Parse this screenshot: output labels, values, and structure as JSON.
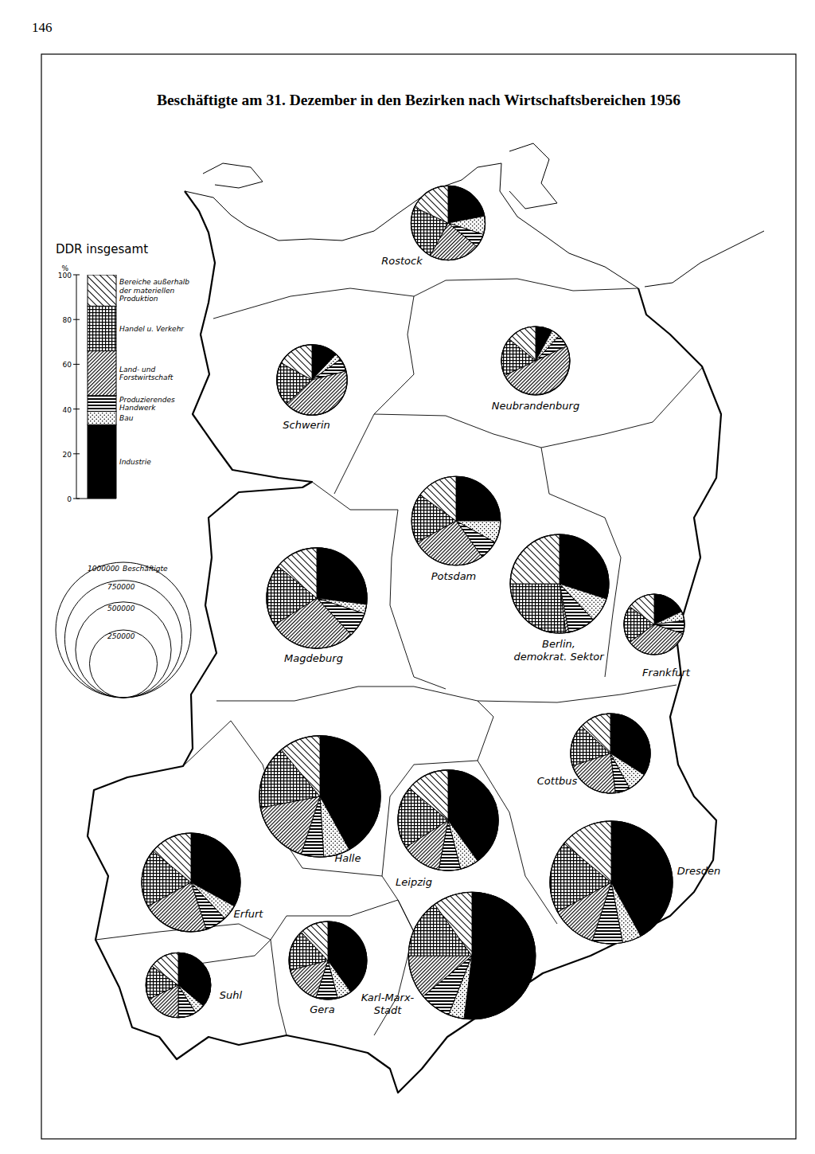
{
  "page_number": "146",
  "title": "Beschäftigte am 31. Dezember in den Bezirken nach Wirtschaftsbereichen 1956",
  "chart_data": [
    {
      "type": "bar",
      "stacked": true,
      "title": "DDR insgesamt",
      "y_label": "%",
      "categories": [
        null
      ],
      "ylim": [
        0,
        100
      ],
      "yticks": [
        0,
        20,
        40,
        60,
        80,
        100
      ],
      "tick_labels": "y",
      "series": [
        {
          "name": "Industrie",
          "color": "#000000",
          "values": [
            33
          ]
        },
        {
          "name": "Bau",
          "color": "#000000",
          "values": [
            6
          ]
        },
        {
          "name": "Produzierendes\nHandwerk",
          "color": "#000000",
          "values": [
            7
          ]
        },
        {
          "name": "Land- und\nForstwirtschaft",
          "color": "#000000",
          "values": [
            20
          ]
        },
        {
          "name": "Handel u. Verkehr",
          "color": "#000000",
          "values": [
            20
          ]
        },
        {
          "name": "Bereiche außerhalb\nder materiellen\nProduktion",
          "color": "#000000",
          "values": [
            14
          ]
        }
      ]
    },
    {
      "type": "size_legend",
      "title": "Beschäftigte",
      "values": [
        1000000,
        750000,
        500000,
        250000
      ]
    },
    {
      "type": "pie",
      "title": "Rostock",
      "employees": 300000,
      "values": [
        22,
        8,
        6,
        22,
        24,
        18
      ]
    },
    {
      "type": "pie",
      "title": "Neubrandenburg",
      "employees": 256000,
      "values": [
        8,
        4,
        6,
        50,
        18,
        14
      ]
    },
    {
      "type": "pie",
      "title": "Schwerin",
      "employees": 270000,
      "values": [
        12,
        3,
        6,
        42,
        20,
        17
      ]
    },
    {
      "type": "pie",
      "title": "Potsdam",
      "employees": 430000,
      "values": [
        25,
        8,
        7,
        27,
        18,
        15
      ]
    },
    {
      "type": "pie",
      "title": "Berlin,\ndemokrat. Sektor",
      "employees": 530000,
      "values": [
        30,
        8,
        9,
        1,
        27,
        25
      ]
    },
    {
      "type": "pie",
      "title": "Magdeburg",
      "employees": 550000,
      "values": [
        27,
        3,
        8,
        28,
        20,
        14
      ]
    },
    {
      "type": "pie",
      "title": "Frankfurt",
      "employees": 200000,
      "values": [
        18,
        5,
        7,
        35,
        20,
        15
      ]
    },
    {
      "type": "pie",
      "title": "Cottbus",
      "employees": 346000,
      "values": [
        34,
        8,
        6,
        22,
        17,
        13
      ]
    },
    {
      "type": "pie",
      "title": "Halle",
      "employees": 800000,
      "values": [
        42,
        7,
        6,
        17,
        17,
        11
      ]
    },
    {
      "type": "pie",
      "title": "Leipzig",
      "employees": 550000,
      "values": [
        40,
        6,
        7,
        13,
        20,
        14
      ]
    },
    {
      "type": "pie",
      "title": "Dresden",
      "employees": 820000,
      "values": [
        42,
        5,
        8,
        12,
        19,
        14
      ]
    },
    {
      "type": "pie",
      "title": "Erfurt",
      "employees": 530000,
      "values": [
        33,
        5,
        7,
        22,
        19,
        14
      ]
    },
    {
      "type": "pie",
      "title": "Gera",
      "employees": 330000,
      "values": [
        40,
        6,
        9,
        16,
        17,
        12
      ]
    },
    {
      "type": "pie",
      "title": "Karl-Marx-\nStadt",
      "employees": 880000,
      "values": [
        52,
        4,
        8,
        11,
        15,
        10
      ]
    },
    {
      "type": "pie",
      "title": "Suhl",
      "employees": 230000,
      "values": [
        36,
        5,
        9,
        18,
        17,
        15
      ]
    }
  ]
}
